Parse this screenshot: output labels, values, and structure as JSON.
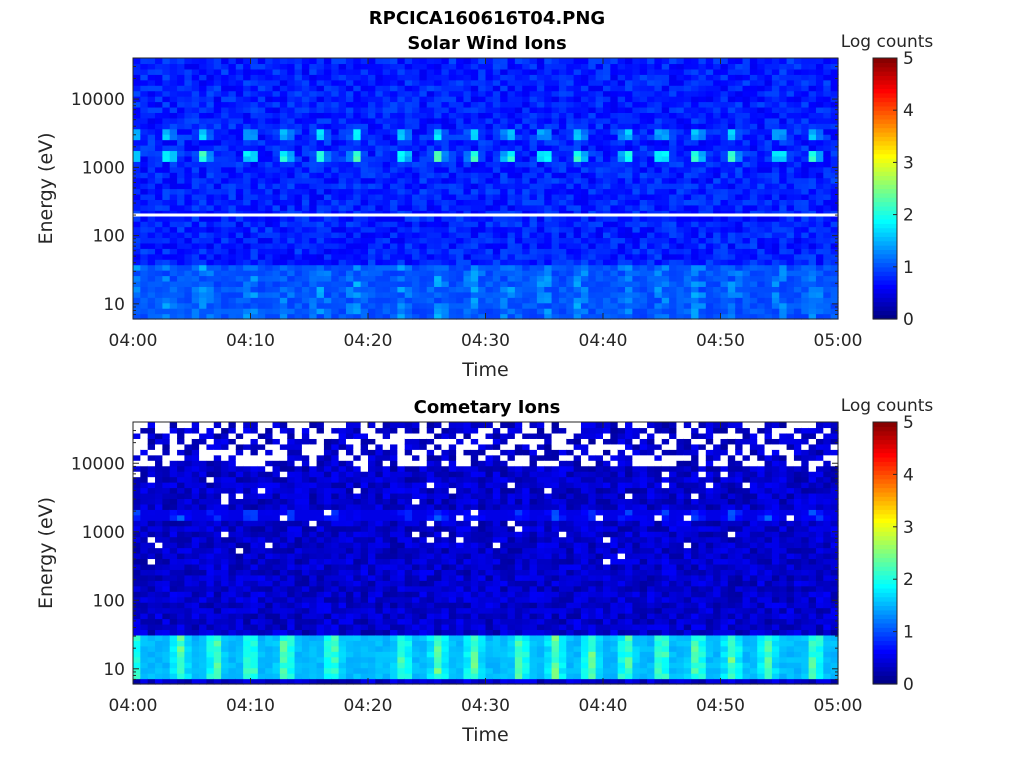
{
  "figure": {
    "title": "RPCICA160616T04.PNG"
  },
  "palette": {
    "background": "#ffffff",
    "fill_value_color": "#ffffff",
    "colormap": "jet"
  },
  "chart_data": [
    {
      "type": "heatmap",
      "title": "Solar Wind Ions",
      "xlabel": "Time",
      "ylabel": "Energy (eV)",
      "x_ticks": [
        "04:00",
        "04:10",
        "04:20",
        "04:30",
        "04:40",
        "04:50",
        "05:00"
      ],
      "x_range": [
        "04:00",
        "05:00"
      ],
      "y_scale": "log",
      "y_range": [
        6,
        40000
      ],
      "y_ticks": [
        {
          "value": 10,
          "label": "10"
        },
        {
          "value": 100,
          "label": "100"
        },
        {
          "value": 1000,
          "label": "1000"
        },
        {
          "value": 10000,
          "label": "10000"
        }
      ],
      "colorbar": {
        "title": "Log counts",
        "range": [
          0,
          5
        ],
        "ticks": [
          "0",
          "1",
          "2",
          "3",
          "4",
          "5"
        ]
      },
      "background_level": 0.55,
      "white_line_energy_ev": 200,
      "features": [
        {
          "energy_ev": 1600,
          "peak_log_counts": 2.6,
          "description": "intermittent solar wind proton bursts"
        },
        {
          "energy_ev": 3300,
          "peak_log_counts": 2.0,
          "description": "solar wind alpha bursts"
        },
        {
          "energy_ev": 15,
          "peak_log_counts": 1.6,
          "description": "low energy flux"
        }
      ],
      "burst_times": [
        "04:00",
        "04:03",
        "04:06",
        "04:10",
        "04:13",
        "04:16",
        "04:19",
        "04:23",
        "04:26",
        "04:29",
        "04:32",
        "04:35",
        "04:38",
        "04:42",
        "04:45",
        "04:48",
        "04:51",
        "04:55",
        "04:58"
      ]
    },
    {
      "type": "heatmap",
      "title": "Cometary Ions",
      "xlabel": "Time",
      "ylabel": "Energy (eV)",
      "x_ticks": [
        "04:00",
        "04:10",
        "04:20",
        "04:30",
        "04:40",
        "04:50",
        "05:00"
      ],
      "x_range": [
        "04:00",
        "05:00"
      ],
      "y_scale": "log",
      "y_range": [
        6,
        40000
      ],
      "y_ticks": [
        {
          "value": 10,
          "label": "10"
        },
        {
          "value": 100,
          "label": "100"
        },
        {
          "value": 1000,
          "label": "1000"
        },
        {
          "value": 10000,
          "label": "10000"
        }
      ],
      "colorbar": {
        "title": "Log counts",
        "range": [
          0,
          5
        ],
        "ticks": [
          "0",
          "1",
          "2",
          "3",
          "4",
          "5"
        ]
      },
      "background_level": 0.15,
      "features": [
        {
          "energy_ev": 15,
          "peak_log_counts": 2.6,
          "description": "strong low energy cometary ion band"
        },
        {
          "energy_ev": 1700,
          "peak_log_counts": 1.3,
          "description": "weak solar wind signature"
        },
        {
          "energy_ev": 15000,
          "peak_log_counts": null,
          "description": "sparse / empty bins above ~10 keV"
        }
      ],
      "burst_times": [
        "04:00",
        "04:04",
        "04:07",
        "04:10",
        "04:13",
        "04:17",
        "04:23",
        "04:26",
        "04:29",
        "04:33",
        "04:36",
        "04:39",
        "04:42",
        "04:45",
        "04:48",
        "04:51",
        "04:54",
        "04:58"
      ]
    }
  ]
}
